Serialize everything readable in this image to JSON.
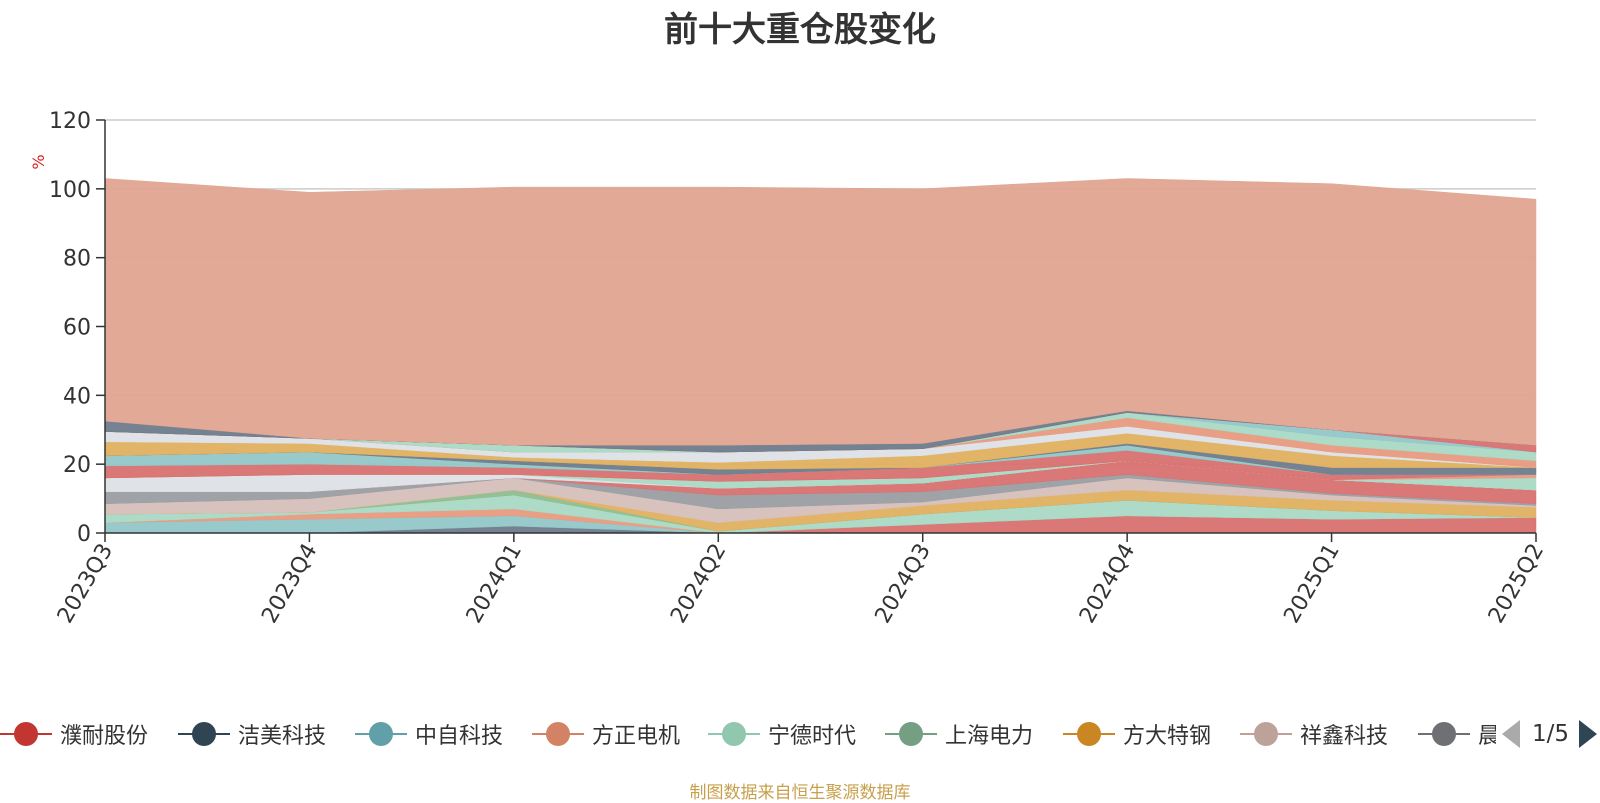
{
  "chart_data": {
    "type": "area",
    "title": "前十大重仓股变化",
    "ylabel": "%",
    "ylim": [
      0,
      120
    ],
    "yticks": [
      0,
      20,
      40,
      60,
      80,
      100,
      120
    ],
    "categories": [
      "2023Q3",
      "2023Q4",
      "2024Q1",
      "2024Q2",
      "2024Q3",
      "2024Q4",
      "2025Q1",
      "2025Q2"
    ],
    "grid": true,
    "stacked": true,
    "series": [
      {
        "name": "濮耐股份",
        "color": "#d87070",
        "values": [
          0,
          0,
          0,
          0,
          2.5,
          5,
          4,
          4.5
        ]
      },
      {
        "name": "洁美科技",
        "color": "#6e7b8b",
        "values": [
          0,
          0,
          2,
          0,
          0,
          0,
          0,
          0
        ]
      },
      {
        "name": "中自科技",
        "color": "#92c7c8",
        "values": [
          3,
          4,
          3,
          0,
          0,
          0,
          0,
          0
        ]
      },
      {
        "name": "方正电机",
        "color": "#e79a7f",
        "values": [
          0,
          1.5,
          2,
          0,
          0,
          0,
          0,
          0
        ]
      },
      {
        "name": "宁德时代",
        "color": "#a9d9c5",
        "values": [
          2.5,
          0.5,
          4,
          0.5,
          3,
          4.5,
          2.5,
          0
        ]
      },
      {
        "name": "上海电力",
        "color": "#8fbc8f",
        "values": [
          0,
          0,
          1.5,
          0,
          0,
          0,
          0,
          0
        ]
      },
      {
        "name": "方大特钢",
        "color": "#e0b060",
        "values": [
          0,
          0,
          0,
          2.5,
          2.5,
          3,
          3,
          3
        ]
      },
      {
        "name": "祥鑫科技",
        "color": "#d6bfb9",
        "values": [
          3,
          4,
          3.5,
          4,
          1,
          3.5,
          1.5,
          0.5
        ]
      },
      {
        "name": "",
        "color": "#9a9ea3",
        "values": [
          3.5,
          2,
          0,
          4,
          3,
          1,
          0.5,
          0.5
        ]
      },
      {
        "name": "",
        "color": "#d87070",
        "values": [
          0,
          0,
          0,
          2,
          2.5,
          4,
          4,
          4
        ]
      },
      {
        "name": "",
        "color": "#dde1e6",
        "values": [
          4,
          5,
          1,
          0,
          0,
          0,
          0,
          0
        ]
      },
      {
        "name": "",
        "color": "#a9d9c5",
        "values": [
          0,
          0,
          0,
          2,
          1.5,
          0,
          0,
          3.5
        ]
      },
      {
        "name": "",
        "color": "#e79a7f",
        "values": [
          0,
          0,
          0,
          0,
          0,
          0,
          0,
          1
        ]
      },
      {
        "name": "",
        "color": "#d87070",
        "values": [
          3.5,
          3,
          2,
          2,
          3,
          3,
          1.5,
          0
        ]
      },
      {
        "name": "",
        "color": "#92c7c8",
        "values": [
          3,
          3.5,
          1,
          0,
          0,
          1.5,
          0,
          0
        ]
      },
      {
        "name": "",
        "color": "#6e7b8b",
        "values": [
          0,
          0,
          1,
          1.5,
          0,
          0.5,
          2,
          2
        ]
      },
      {
        "name": "",
        "color": "#e0b060",
        "values": [
          4,
          2.5,
          1,
          2,
          3.5,
          3,
          3.5,
          0
        ]
      },
      {
        "name": "",
        "color": "#dde1e6",
        "values": [
          3,
          1.5,
          1.5,
          3,
          2,
          2,
          1,
          0
        ]
      },
      {
        "name": "",
        "color": "#e79a7f",
        "values": [
          0,
          0,
          0,
          0,
          0,
          2.5,
          2,
          2
        ]
      },
      {
        "name": "",
        "color": "#a9d9c5",
        "values": [
          0,
          0,
          2,
          0,
          0,
          1.5,
          2.5,
          2.5
        ]
      },
      {
        "name": "",
        "color": "#92c7c8",
        "values": [
          0,
          0,
          0,
          0,
          0,
          0,
          2,
          0
        ]
      },
      {
        "name": "",
        "color": "#d87070",
        "values": [
          0,
          0,
          0,
          0,
          0,
          0,
          0,
          2
        ]
      },
      {
        "name": "",
        "color": "#6e7b8b",
        "values": [
          3,
          0,
          0,
          2,
          1.5,
          0.5,
          0,
          0
        ]
      },
      {
        "name": "",
        "color": "#e0a590",
        "values": [
          70.5,
          71.5,
          75,
          75,
          74,
          67.5,
          71.5,
          71.5
        ]
      }
    ]
  },
  "legend": {
    "items": [
      {
        "label": "濮耐股份",
        "color": "#c23531"
      },
      {
        "label": "洁美科技",
        "color": "#2f4554"
      },
      {
        "label": "中自科技",
        "color": "#61a0a8"
      },
      {
        "label": "方正电机",
        "color": "#d48265"
      },
      {
        "label": "宁德时代",
        "color": "#91c7ae"
      },
      {
        "label": "上海电力",
        "color": "#749f83"
      },
      {
        "label": "方大特钢",
        "color": "#ca8622"
      },
      {
        "label": "祥鑫科技",
        "color": "#bda29a"
      },
      {
        "label": "晨",
        "color": "#6e7074"
      }
    ],
    "page": "1/5"
  },
  "source_note": "制图数据来自恒生聚源数据库"
}
